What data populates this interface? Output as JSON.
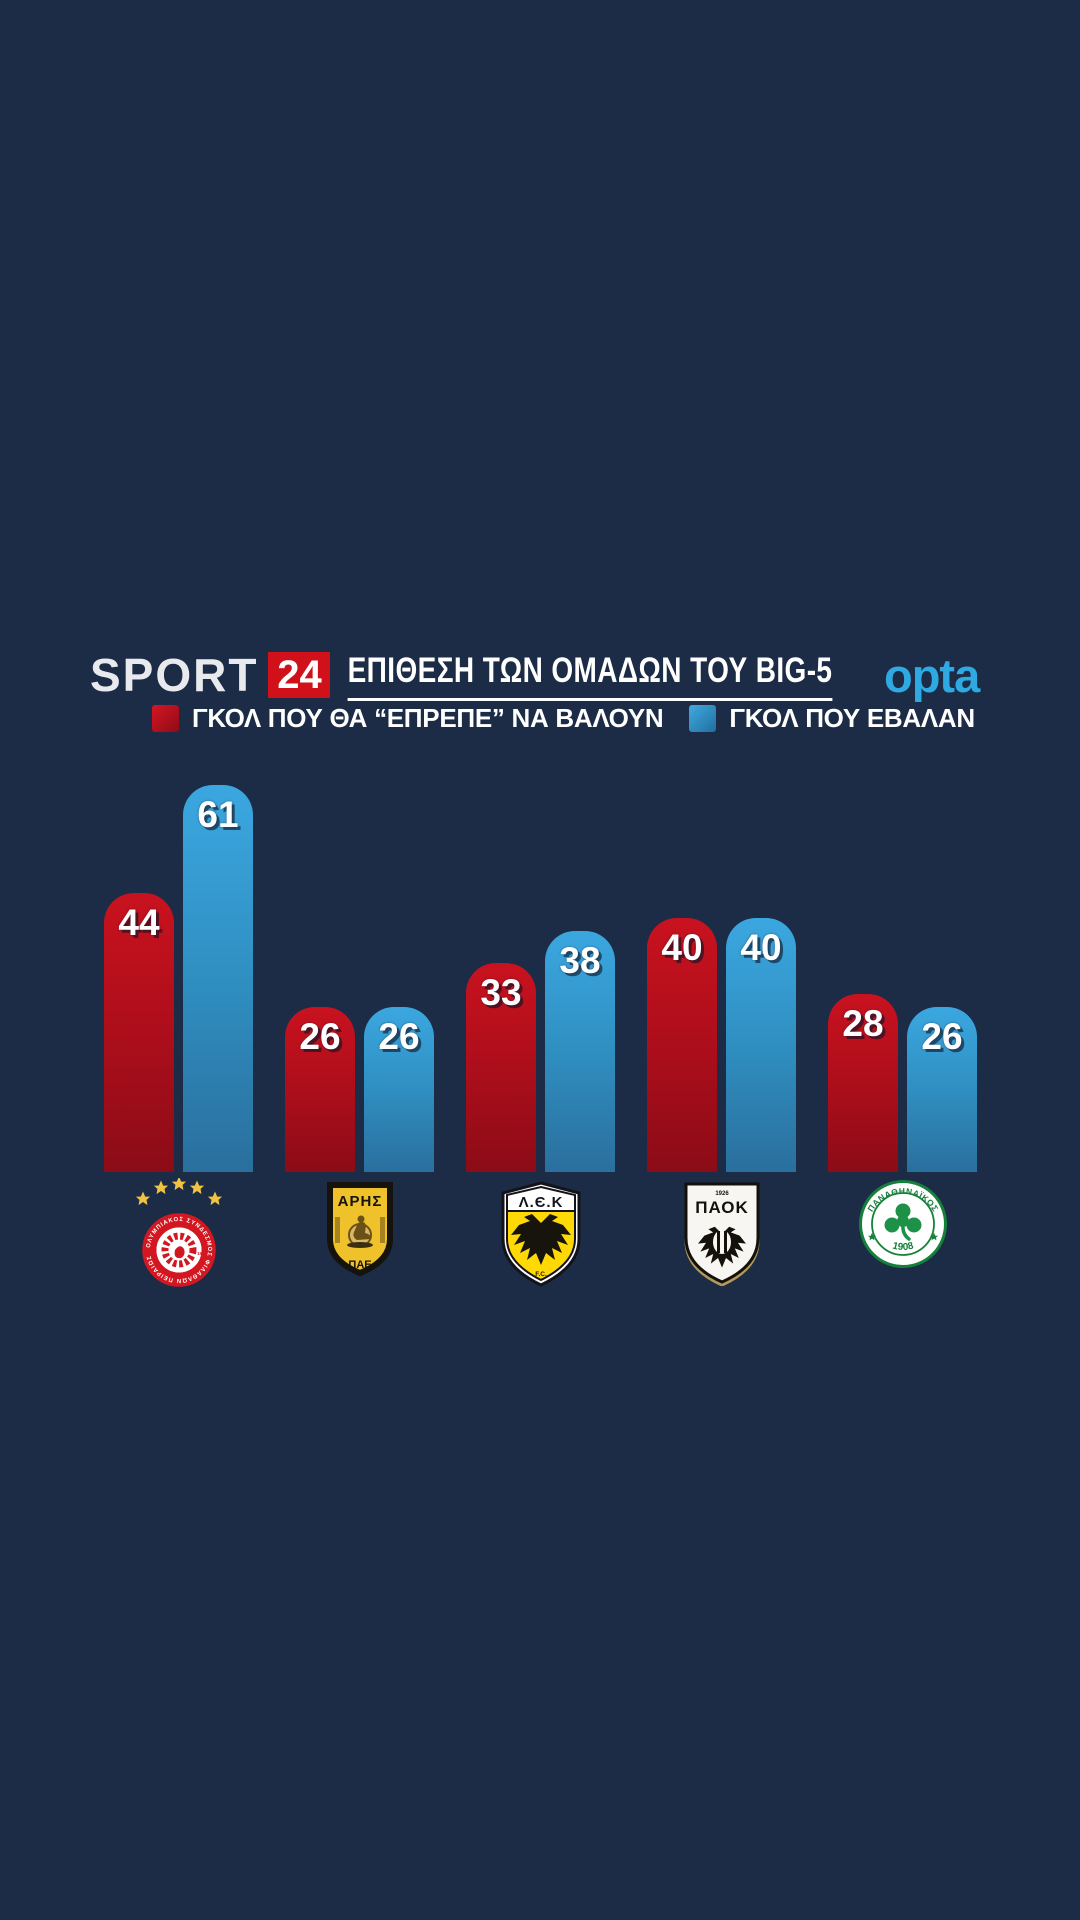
{
  "background": "#1c2b46",
  "colors": {
    "bar_red": "#c9121f",
    "bar_red_dark": "#8b0c17",
    "bar_blue": "#3ba7e0",
    "bar_blue_dark": "#2a6f9d",
    "accent_red": "#d01119",
    "opta_blue": "#2fa9e1",
    "gold": "#f0c441",
    "text": "#ffffff"
  },
  "header": {
    "brand_word": "SPORT",
    "brand_number": "24",
    "title": "ΕΠΙΘΕΣΗ ΤΩΝ ΟΜΑΔΩΝ ΤΟΥ BIG-5",
    "provider": "opta"
  },
  "legend": {
    "expected_label": "ΓΚΟΛ ΠΟΥ ΘΑ “ΕΠΡΕΠΕ” ΝΑ ΒΑΛΟΥΝ",
    "scored_label": "ΓΚΟΛ ΠΟΥ ΕΒΑΛΑΝ"
  },
  "chart_data": {
    "type": "bar",
    "title": "ΕΠΙΘΕΣΗ ΤΩΝ ΟΜΑΔΩΝ ΤΟΥ BIG-5",
    "categories": [
      "ΟΛΥΜΠΙΑΚΟΣ",
      "ΑΡΗΣ",
      "ΑΕΚ",
      "ΠΑΟΚ",
      "ΠΑΝΑΘΗΝΑΪΚΟΣ"
    ],
    "series": [
      {
        "name": "ΓΚΟΛ ΠΟΥ ΘΑ “ΕΠΡΕΠΕ” ΝΑ ΒΑΛΟΥΝ",
        "key": "red",
        "values": [
          44,
          26,
          33,
          40,
          28
        ]
      },
      {
        "name": "ΓΚΟΛ ΠΟΥ ΕΒΑΛΑΝ",
        "key": "blue",
        "values": [
          61,
          26,
          38,
          40,
          26
        ]
      }
    ],
    "ylim": [
      0,
      65
    ],
    "grid": false,
    "axes_visible": false,
    "legend_position": "top",
    "value_labels": true
  },
  "logos": {
    "olympiacos": {
      "ring_text": "ΟΛΥΜΠΙΑΚΟΣ ΣΥΝΔΕΣΜΟΣ ΦΙΛΑΘΛΩΝ ΠΕΙΡΑΙΩΣ",
      "year": "1925"
    },
    "aris": {
      "name": "ΑΡΗΣ",
      "sub": "ΠΑΕ"
    },
    "aek": {
      "name": "Λ.Є.Κ",
      "sub": "F.C."
    },
    "paok": {
      "name": "ΠΑΟΚ",
      "year": "1926"
    },
    "panathinaikos": {
      "name": "ΠΑΝΑΘΗΝΑΪΚΟΣ",
      "year": "1908"
    }
  }
}
